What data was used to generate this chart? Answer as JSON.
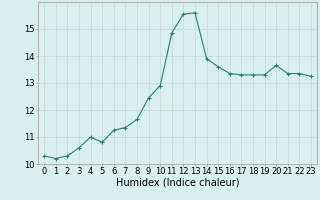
{
  "x": [
    0,
    1,
    2,
    3,
    4,
    5,
    6,
    7,
    8,
    9,
    10,
    11,
    12,
    13,
    14,
    15,
    16,
    17,
    18,
    19,
    20,
    21,
    22,
    23
  ],
  "y": [
    10.3,
    10.2,
    10.3,
    10.6,
    11.0,
    10.8,
    11.25,
    11.35,
    11.65,
    12.45,
    12.9,
    14.85,
    15.55,
    15.6,
    13.9,
    13.6,
    13.35,
    13.3,
    13.3,
    13.3,
    13.65,
    13.35,
    13.35,
    13.25
  ],
  "xlabel": "Humidex (Indice chaleur)",
  "ylim": [
    10,
    16
  ],
  "xlim_left": -0.5,
  "xlim_right": 23.5,
  "yticks": [
    10,
    11,
    12,
    13,
    14,
    15
  ],
  "xticks": [
    0,
    1,
    2,
    3,
    4,
    5,
    6,
    7,
    8,
    9,
    10,
    11,
    12,
    13,
    14,
    15,
    16,
    17,
    18,
    19,
    20,
    21,
    22,
    23
  ],
  "line_color": "#2e7d6e",
  "marker": "+",
  "bg_color": "#d8f0f0",
  "grid_color": "#c8d8d8",
  "tick_fontsize": 6,
  "label_fontsize": 7
}
